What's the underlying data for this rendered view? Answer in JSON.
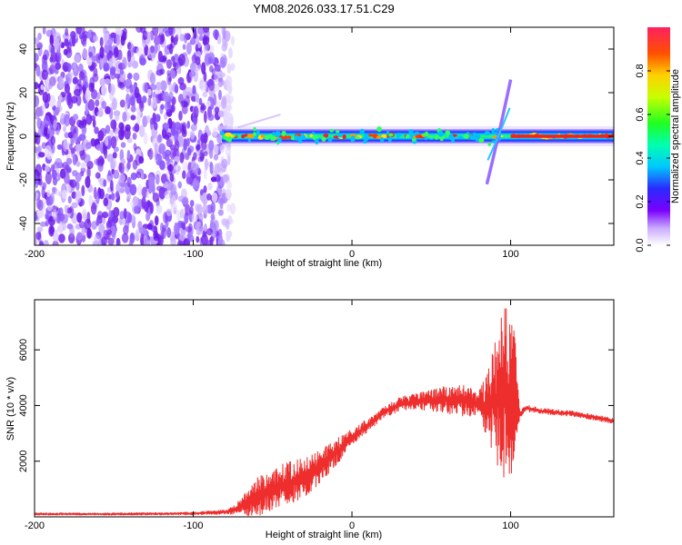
{
  "title": "YM08.2026.033.17.51.C29",
  "colors": {
    "snr_line": "#ee2d2d",
    "track_core": "#ee2222",
    "noise": "#7a3ff0"
  },
  "chart_data": [
    {
      "type": "heatmap",
      "name": "spectrogram",
      "xlabel": "Height of straight line (km)",
      "ylabel": "Frequency (Hz)",
      "xlim": [
        -200,
        165
      ],
      "ylim": [
        -50,
        50
      ],
      "xticks": [
        -200,
        -100,
        0,
        100
      ],
      "yticks": [
        -40,
        -20,
        0,
        20,
        40
      ],
      "colorbar": {
        "label": "Normalized spectral amplitude",
        "range": [
          0,
          1
        ],
        "ticks": [
          0,
          0.2,
          0.4,
          0.6,
          0.8
        ]
      },
      "features": {
        "noise_region_x": [
          -200,
          -75
        ],
        "carrier_track": {
          "x_start": -82,
          "x_end": 165,
          "frequency": 0
        },
        "vertical_streak": {
          "x": [
            85,
            100
          ],
          "frequency": [
            -22,
            26
          ]
        }
      }
    },
    {
      "type": "line",
      "name": "snr",
      "xlabel": "Height of straight line (km)",
      "ylabel": "SNR (10 * v/v)",
      "xlim": [
        -200,
        165
      ],
      "ylim": [
        0,
        7800
      ],
      "xticks": [
        -200,
        -100,
        0,
        100
      ],
      "yticks": [
        2000,
        4000,
        6000
      ],
      "series": [
        {
          "name": "SNR",
          "x": [
            -200,
            -150,
            -100,
            -78,
            -70,
            -60,
            -50,
            -40,
            -30,
            -20,
            -10,
            0,
            10,
            20,
            30,
            40,
            50,
            60,
            70,
            80,
            85,
            90,
            95,
            97,
            100,
            103,
            106,
            110,
            120,
            140,
            165
          ],
          "y": [
            100,
            100,
            120,
            180,
            350,
            700,
            1000,
            1200,
            1400,
            1800,
            2300,
            2850,
            3300,
            3750,
            4050,
            4150,
            4200,
            4200,
            4150,
            4100,
            4000,
            4200,
            4300,
            4200,
            4100,
            4200,
            3700,
            3900,
            3800,
            3700,
            3450
          ],
          "spread": [
            40,
            40,
            50,
            80,
            300,
            700,
            800,
            800,
            700,
            600,
            500,
            300,
            250,
            200,
            250,
            300,
            400,
            500,
            600,
            400,
            1200,
            2000,
            3400,
            3700,
            3500,
            2200,
            150,
            120,
            100,
            100,
            100
          ]
        }
      ]
    }
  ]
}
